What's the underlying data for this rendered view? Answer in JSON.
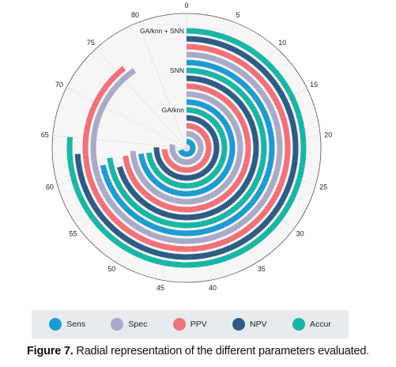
{
  "chart_data": {
    "type": "radial-bar",
    "axis_ticks": [
      "0",
      "5",
      "10",
      "15",
      "20",
      "25",
      "30",
      "35",
      "40",
      "45",
      "50",
      "55",
      "60",
      "65",
      "70",
      "75",
      "80"
    ],
    "axis_max": 85,
    "groups": [
      "GA/knn + SNN",
      "SNN",
      "GA/knn"
    ],
    "series": [
      {
        "name": "Sens",
        "color": "#1f9bd1"
      },
      {
        "name": "Spec",
        "color": "#a8aac8"
      },
      {
        "name": "PPV",
        "color": "#f07178"
      },
      {
        "name": "NPV",
        "color": "#2e5c84"
      },
      {
        "name": "Accur",
        "color": "#1bb5a6"
      }
    ],
    "rings": [
      {
        "group": "GA/knn + SNN",
        "series": "Accur",
        "value": 65
      },
      {
        "group": "GA/knn + SNN",
        "series": "NPV",
        "value": 63
      },
      {
        "group": "GA/knn + SNN",
        "series": "PPV",
        "value": 76
      },
      {
        "group": "GA/knn + SNN",
        "series": "Spec",
        "value": 77
      },
      {
        "group": "GA/knn + SNN",
        "series": "Sens",
        "value": 61
      },
      {
        "group": "SNN",
        "series": "Accur",
        "value": 62
      },
      {
        "group": "SNN",
        "series": "NPV",
        "value": 60
      },
      {
        "group": "SNN",
        "series": "PPV",
        "value": 62
      },
      {
        "group": "SNN",
        "series": "Spec",
        "value": 63
      },
      {
        "group": "SNN",
        "series": "Sens",
        "value": 62
      },
      {
        "group": "GA/knn",
        "series": "Accur",
        "value": 62
      },
      {
        "group": "GA/knn",
        "series": "NPV",
        "value": 64
      },
      {
        "group": "GA/knn",
        "series": "PPV",
        "value": 63
      },
      {
        "group": "GA/knn",
        "series": "Spec",
        "value": 67
      },
      {
        "group": "GA/knn",
        "series": "Sens",
        "value": 59
      }
    ]
  },
  "legend": {
    "items": [
      {
        "label": "Sens",
        "color": "#1f9bd1"
      },
      {
        "label": "Spec",
        "color": "#a8aac8"
      },
      {
        "label": "PPV",
        "color": "#f07178"
      },
      {
        "label": "NPV",
        "color": "#2e5c84"
      },
      {
        "label": "Accur",
        "color": "#1bb5a6"
      }
    ]
  },
  "caption": {
    "lead": "Figure 7.",
    "text": " Radial representation of the different parameters evaluated."
  }
}
